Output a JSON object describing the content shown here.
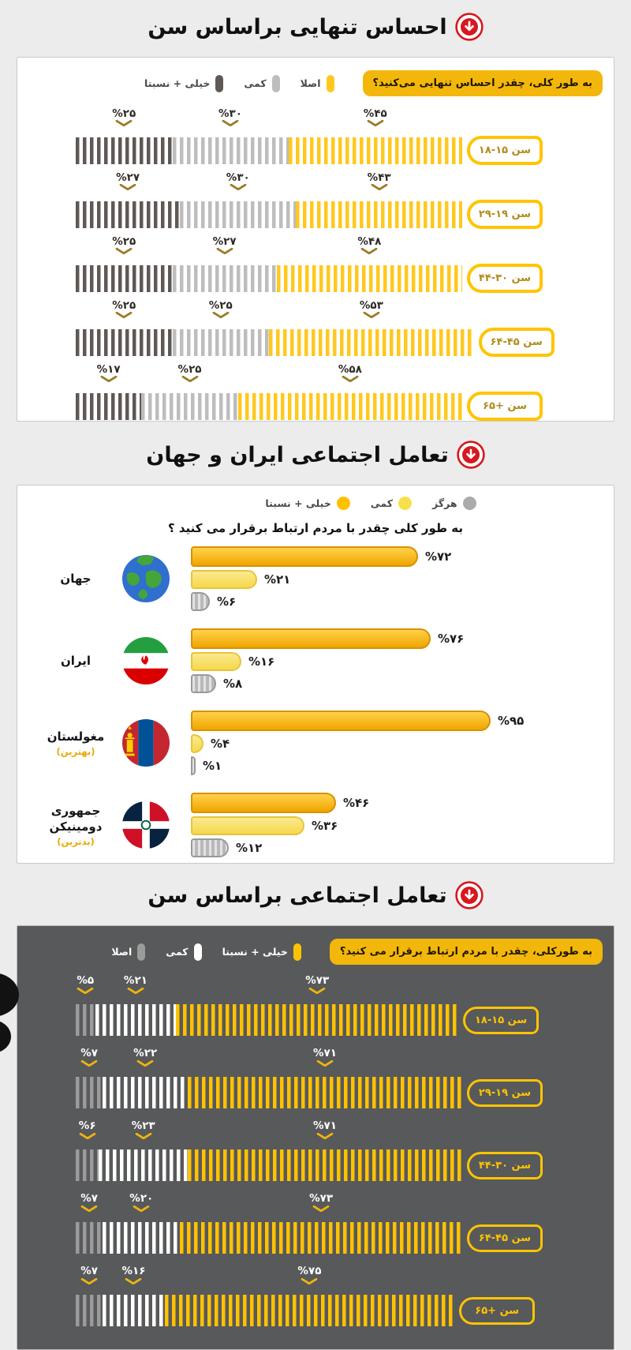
{
  "titles": {
    "s1": "احساس تنهایی براساس سن",
    "s2": "تعامل اجتماعی ایران و جهان",
    "s3": "تعامل اجتماعی براساس سن"
  },
  "colors": {
    "accent_yellow": "#F3B70C",
    "red_icon": "#D6181F",
    "dark_panel": "#58595B",
    "page_bg": "#ECECEC"
  },
  "chart_data": [
    {
      "type": "bar",
      "variant": "striped-horizontal",
      "title": "احساس تنهایی براساس سن",
      "question": "به طور کلی، چقدر احساس تنهایی می‌کنید؟",
      "legend": [
        {
          "label": "اصلا",
          "color": "#FFC81E"
        },
        {
          "label": "کمی",
          "color": "#BDBDBD"
        },
        {
          "label": "خیلی + نسبتا",
          "color": "#5F5855"
        }
      ],
      "categories": [
        "سن ۱۵-۱۸",
        "سن ۱۹-۲۹",
        "سن ۳۰-۴۴",
        "سن ۴۵-۶۴",
        "سن +۶۵"
      ],
      "series": [
        {
          "name": "خیلی + نسبتا",
          "color": "#5F5855",
          "values": [
            25,
            27,
            25,
            25,
            17
          ],
          "labels": [
            "%۲۵",
            "%۲۷",
            "%۲۵",
            "%۲۵",
            "%۱۷"
          ]
        },
        {
          "name": "کمی",
          "color": "#BDBDBD",
          "values": [
            30,
            30,
            27,
            25,
            25
          ],
          "labels": [
            "%۳۰",
            "%۳۰",
            "%۲۷",
            "%۲۵",
            "%۲۵"
          ]
        },
        {
          "name": "اصلا",
          "color": "#FFC81E",
          "values": [
            45,
            43,
            48,
            53,
            58
          ],
          "labels": [
            "%۴۵",
            "%۴۳",
            "%۴۸",
            "%۵۳",
            "%۵۸"
          ]
        }
      ],
      "xlim": [
        0,
        100
      ]
    },
    {
      "type": "bar",
      "variant": "horizontal-grouped",
      "title": "تعامل اجتماعی ایران و جهان",
      "question": "به طور کلی چقدر با مردم ارتباط برقرار می کنید ؟",
      "legend": [
        {
          "label": "هرگز",
          "color": "#ABABAB"
        },
        {
          "label": "کمی",
          "color": "#F7E04B"
        },
        {
          "label": "خیلی + نسبتا",
          "color": "#FFC200"
        }
      ],
      "categories": [
        "جهان",
        "ایران",
        "مغولستان",
        "جمهوری دومینیکن"
      ],
      "category_notes": [
        "",
        "",
        "(بهترین)",
        "(بدترین)"
      ],
      "flags": [
        "world",
        "iran",
        "mongolia",
        "dominican"
      ],
      "series": [
        {
          "name": "خیلی + نسبتا",
          "values": [
            72,
            76,
            95,
            46
          ],
          "labels": [
            "%۷۲",
            "%۷۶",
            "%۹۵",
            "%۴۶"
          ]
        },
        {
          "name": "کمی",
          "values": [
            21,
            16,
            4,
            36
          ],
          "labels": [
            "%۲۱",
            "%۱۶",
            "%۴",
            "%۳۶"
          ]
        },
        {
          "name": "هرگز",
          "values": [
            6,
            8,
            1,
            12
          ],
          "labels": [
            "%۶",
            "%۸",
            "%۱",
            "%۱۲"
          ]
        }
      ],
      "xlim": [
        0,
        100
      ]
    },
    {
      "type": "bar",
      "variant": "striped-horizontal-dark",
      "title": "تعامل اجتماعی براساس سن",
      "question": "به طورکلی، چقدر با مردم ارتباط برقرار می کنید؟",
      "legend": [
        {
          "label": "خیلی + نسبتا",
          "color": "#FFC200"
        },
        {
          "label": "کمی",
          "color": "#FFFFFF"
        },
        {
          "label": "اصلا",
          "color": "#9B9B9B"
        }
      ],
      "categories": [
        "سن ۱۵-۱۸",
        "سن ۱۹-۲۹",
        "سن ۳۰-۴۴",
        "سن ۴۵-۶۴",
        "سن +۶۵"
      ],
      "series": [
        {
          "name": "اصلا",
          "color": "#9B9B9B",
          "values": [
            5,
            7,
            6,
            7,
            7
          ],
          "labels": [
            "%۵",
            "%۷",
            "%۶",
            "%۷",
            "%۷"
          ]
        },
        {
          "name": "کمی",
          "color": "#FFFFFF",
          "values": [
            21,
            22,
            23,
            20,
            16
          ],
          "labels": [
            "%۲۱",
            "%۲۲",
            "%۲۳",
            "%۲۰",
            "%۱۶"
          ]
        },
        {
          "name": "خیلی + نسبتا",
          "color": "#FFC200",
          "values": [
            73,
            71,
            71,
            73,
            75
          ],
          "labels": [
            "%۷۳",
            "%۷۱",
            "%۷۱",
            "%۷۳",
            "%۷۵"
          ]
        }
      ],
      "xlim": [
        0,
        100
      ]
    }
  ]
}
